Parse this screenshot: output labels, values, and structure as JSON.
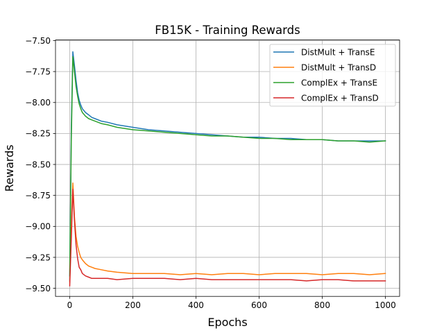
{
  "chart_data": {
    "type": "line",
    "title": "FB15K - Training Rewards",
    "xlabel": "Epochs",
    "ylabel": "Rewards",
    "xlim": [
      -45,
      1045
    ],
    "ylim": [
      -9.565,
      -7.495
    ],
    "xticks": [
      0,
      200,
      400,
      600,
      800,
      1000
    ],
    "yticks": [
      -7.5,
      -7.75,
      -8.0,
      -8.25,
      -8.5,
      -8.75,
      -9.0,
      -9.25,
      -9.5
    ],
    "ytick_labels": [
      "−7.50",
      "−7.75",
      "−8.00",
      "−8.25",
      "−8.50",
      "−8.75",
      "−9.00",
      "−9.25",
      "−9.50"
    ],
    "grid": true,
    "legend_position": "top-right",
    "series": [
      {
        "name": "DistMult + TransE",
        "color": "#1f77b4",
        "x": [
          0,
          5,
          10,
          15,
          20,
          25,
          30,
          35,
          40,
          50,
          60,
          70,
          80,
          100,
          120,
          150,
          200,
          250,
          300,
          350,
          400,
          450,
          500,
          550,
          600,
          650,
          700,
          750,
          800,
          850,
          900,
          950,
          1000
        ],
        "y": [
          -9.44,
          -8.2,
          -7.59,
          -7.7,
          -7.82,
          -7.92,
          -7.98,
          -8.02,
          -8.05,
          -8.08,
          -8.1,
          -8.12,
          -8.13,
          -8.15,
          -8.16,
          -8.18,
          -8.2,
          -8.22,
          -8.23,
          -8.24,
          -8.25,
          -8.26,
          -8.27,
          -8.28,
          -8.28,
          -8.29,
          -8.29,
          -8.3,
          -8.3,
          -8.31,
          -8.31,
          -8.31,
          -8.31
        ]
      },
      {
        "name": "DistMult + TransD",
        "color": "#ff7f0e",
        "x": [
          0,
          5,
          10,
          15,
          20,
          25,
          30,
          35,
          40,
          50,
          60,
          70,
          80,
          100,
          120,
          150,
          200,
          250,
          300,
          350,
          400,
          450,
          500,
          550,
          600,
          650,
          700,
          750,
          800,
          850,
          900,
          950,
          1000
        ],
        "y": [
          -9.45,
          -9.0,
          -8.65,
          -8.92,
          -9.08,
          -9.16,
          -9.21,
          -9.25,
          -9.27,
          -9.3,
          -9.32,
          -9.33,
          -9.34,
          -9.35,
          -9.36,
          -9.37,
          -9.38,
          -9.38,
          -9.38,
          -9.39,
          -9.38,
          -9.39,
          -9.38,
          -9.38,
          -9.39,
          -9.38,
          -9.38,
          -9.38,
          -9.39,
          -9.38,
          -9.38,
          -9.39,
          -9.38
        ]
      },
      {
        "name": "ComplEx + TransE",
        "color": "#2ca02c",
        "x": [
          0,
          5,
          10,
          15,
          20,
          25,
          30,
          35,
          40,
          50,
          60,
          70,
          80,
          100,
          120,
          150,
          200,
          250,
          300,
          350,
          400,
          450,
          500,
          550,
          600,
          650,
          700,
          750,
          800,
          850,
          900,
          950,
          1000
        ],
        "y": [
          -9.4,
          -8.3,
          -7.63,
          -7.75,
          -7.87,
          -7.95,
          -8.01,
          -8.05,
          -8.08,
          -8.11,
          -8.13,
          -8.14,
          -8.15,
          -8.17,
          -8.18,
          -8.2,
          -8.22,
          -8.23,
          -8.24,
          -8.25,
          -8.26,
          -8.27,
          -8.27,
          -8.28,
          -8.29,
          -8.29,
          -8.3,
          -8.3,
          -8.3,
          -8.31,
          -8.31,
          -8.32,
          -8.31
        ]
      },
      {
        "name": "ComplEx + TransD",
        "color": "#d62728",
        "x": [
          0,
          5,
          10,
          15,
          20,
          25,
          30,
          35,
          40,
          50,
          60,
          70,
          80,
          100,
          120,
          150,
          200,
          250,
          300,
          350,
          400,
          450,
          500,
          550,
          600,
          650,
          700,
          750,
          800,
          850,
          900,
          950,
          1000
        ],
        "y": [
          -9.48,
          -9.1,
          -8.7,
          -8.95,
          -9.15,
          -9.26,
          -9.33,
          -9.35,
          -9.38,
          -9.4,
          -9.41,
          -9.42,
          -9.42,
          -9.42,
          -9.42,
          -9.43,
          -9.42,
          -9.42,
          -9.42,
          -9.43,
          -9.42,
          -9.43,
          -9.43,
          -9.43,
          -9.43,
          -9.43,
          -9.43,
          -9.44,
          -9.43,
          -9.43,
          -9.44,
          -9.44,
          -9.44
        ]
      }
    ]
  }
}
